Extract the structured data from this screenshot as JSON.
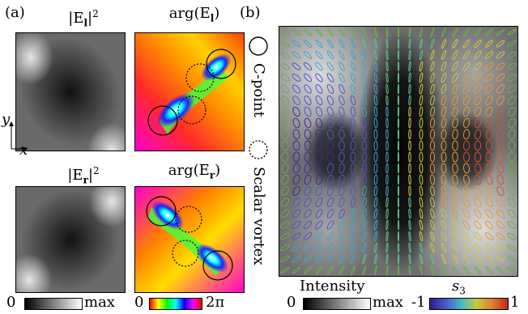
{
  "panel_a": {
    "label": "(a)",
    "title_il": "|E",
    "title_il_sub": "l",
    "title_il_sup": "2",
    "title_argl": "arg(E",
    "title_argl_sub": "l",
    "title_ir": "|E",
    "title_ir_sub": "r",
    "title_ir_sup": "2",
    "title_argr": "arg(E",
    "title_argr_sub": "r",
    "axis_y": "y",
    "axis_x": "x",
    "cbar_int_min": "0",
    "cbar_int_max": "max",
    "cbar_phase_min": "0",
    "cbar_phase_max": "2π"
  },
  "legend": {
    "cpoint": "C-point",
    "scalar": "Scalar vortex"
  },
  "panel_b": {
    "label": "(b)",
    "intensity_label": "Intensity",
    "cbar_int_min": "0",
    "cbar_int_max": "max",
    "s3_label": "s",
    "s3_sub": "3",
    "cbar_s3_min": "-1",
    "cbar_s3_max": "1"
  },
  "colors": {
    "s3_low": "#4a2fa0",
    "s3_high": "#e25822",
    "vortex_dashed": "#000000"
  }
}
